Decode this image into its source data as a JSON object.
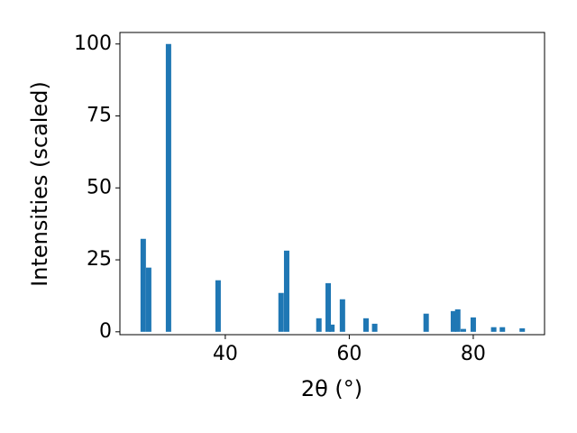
{
  "chart_data": {
    "type": "bar",
    "x_label": "2θ (°)",
    "y_label": "Intensities (scaled)",
    "x": [
      26.76,
      27.64,
      30.84,
      38.84,
      49.0,
      49.9,
      55.1,
      56.6,
      57.2,
      58.9,
      62.7,
      64.1,
      72.4,
      76.8,
      77.5,
      78.4,
      80.0,
      83.3,
      84.7,
      87.9
    ],
    "values": [
      32.3,
      22.3,
      100,
      17.9,
      13.5,
      28.2,
      4.7,
      16.9,
      2.5,
      11.3,
      4.7,
      2.8,
      6.3,
      7.2,
      7.8,
      1.0,
      5.0,
      1.6,
      1.6,
      1.2
    ],
    "color": "#1f77b4",
    "xlim": [
      23,
      91.5
    ],
    "xticks": [
      40,
      60,
      80
    ],
    "ylim": [
      -1,
      104
    ],
    "yticks": [
      0,
      25,
      50,
      75,
      100
    ]
  }
}
